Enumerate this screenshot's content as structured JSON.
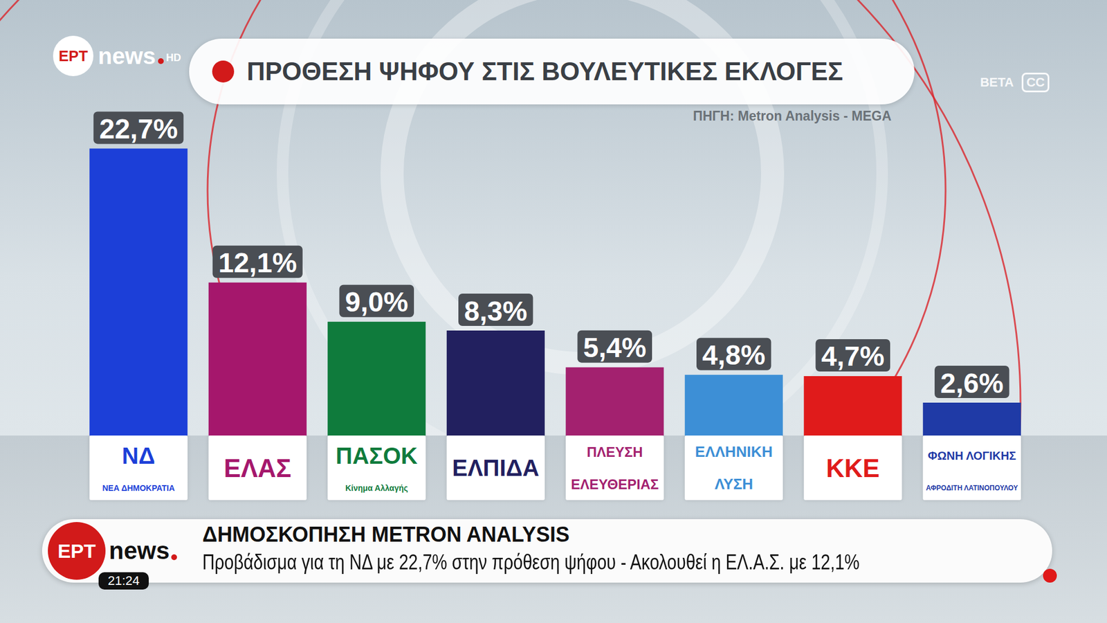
{
  "chart_data": {
    "type": "bar",
    "title": "ΠΡΟΘΕΣΗ ΨΗΦΟΥ ΣΤΙΣ ΒΟΥΛΕΥΤΙΚΕΣ ΕΚΛΟΓΕΣ",
    "annotations": [
      "ΠΗΓΗ: Metron Analysis - MEGA"
    ],
    "categories": [
      "ΝΔ",
      "ΕΛΑΣ",
      "ΠΑΣΟΚ",
      "ΕΛΠΙΔΑ",
      "ΠΛΕΥΣΗ ΕΛΕΥΘΕΡΙΑΣ",
      "ΕΛΛΗΝΙΚΗ ΛΥΣΗ",
      "ΚΚΕ",
      "ΦΩΝΗ ΛΟΓΙΚΗΣ"
    ],
    "category_subtitles": [
      "ΝΕΑ ΔΗΜΟΚΡΑΤΙΑ",
      null,
      "Κίνημα Αλλαγής",
      null,
      null,
      null,
      null,
      "ΑΦΡΟΔΙΤΗ ΛΑΤΙΝΟΠΟΥΛΟΥ"
    ],
    "values": [
      22.7,
      12.1,
      9.0,
      8.3,
      5.4,
      4.8,
      4.7,
      2.6
    ],
    "value_labels": [
      "22,7%",
      "12,1%",
      "9,0%",
      "8,3%",
      "5,4%",
      "4,8%",
      "4,7%",
      "2,6%"
    ],
    "colors": [
      "#1c3fd8",
      "#a5176c",
      "#0f7b3c",
      "#22205f",
      "#a3216f",
      "#3d8fd6",
      "#e01b1b",
      "#1f3aa6"
    ],
    "ylim": [
      0,
      25
    ],
    "data_labels": true,
    "tick_labels": "x",
    "grid": false
  },
  "broadcast": {
    "logo": [
      "ΕΡΤ",
      "news",
      "HD"
    ],
    "badges": [
      "BETA",
      "CC"
    ],
    "ticker": {
      "logo": [
        "ΕΡΤ",
        "news"
      ],
      "headline": "ΔΗΜΟΣΚΟΠΗΣΗ METRON ANALYSIS",
      "text": "Προβάδισμα για τη ΝΔ με 22,7% στην πρόθεση ψήφου - Ακολουθεί η ΕΛ.Α.Σ. με 12,1%",
      "time": "21:24"
    }
  }
}
